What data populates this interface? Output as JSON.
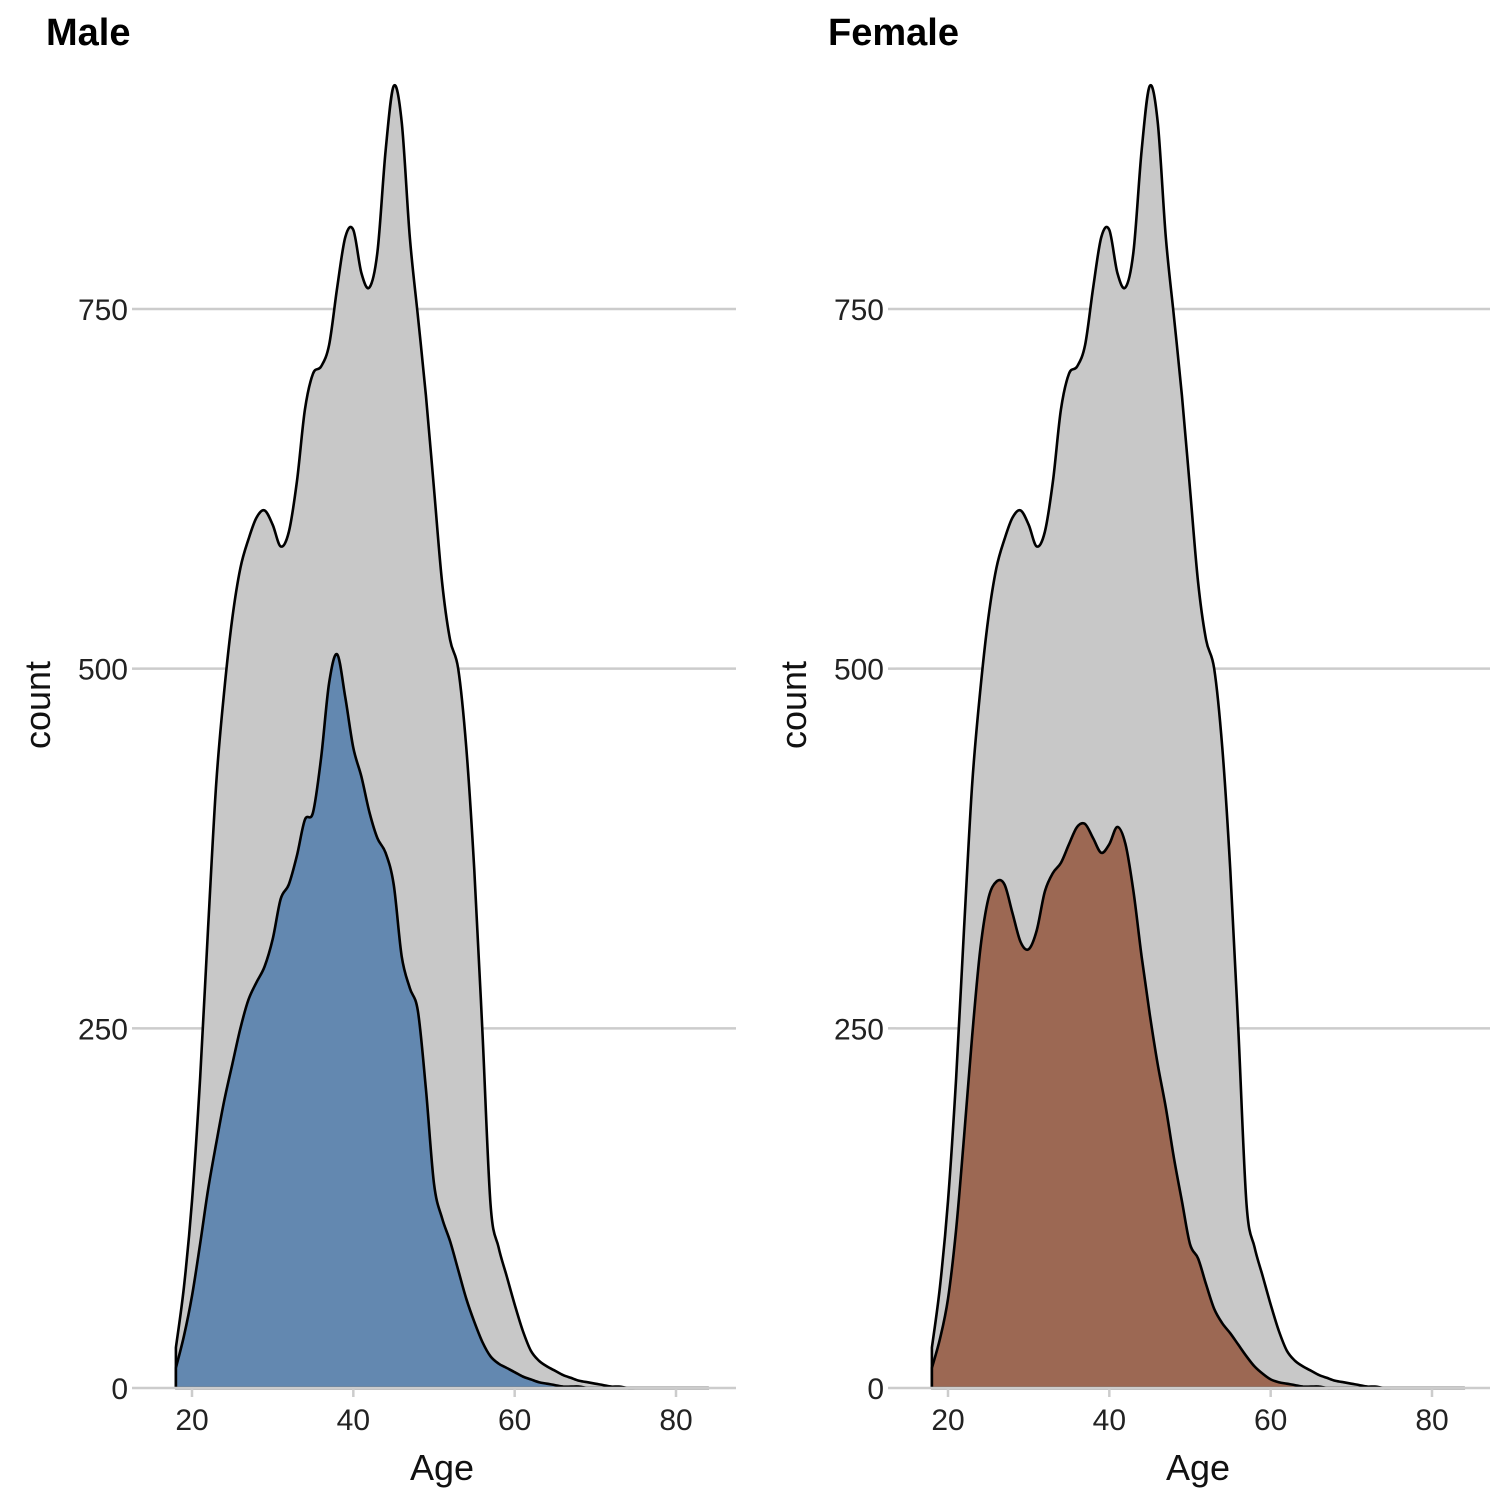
{
  "chart_data": [
    {
      "type": "area",
      "title": "Male",
      "xlabel": "Age",
      "ylabel": "count",
      "xlim": [
        16,
        87
      ],
      "ylim": [
        0,
        905
      ],
      "x_ticks": [
        20,
        40,
        60,
        80
      ],
      "y_ticks": [
        0,
        250,
        500,
        750
      ],
      "grid": "horizontal",
      "series": [
        {
          "role": "all",
          "color": "#c8c8c8",
          "x": [
            18,
            19,
            20,
            21,
            22,
            23,
            24,
            25,
            26,
            27,
            28,
            29,
            30,
            31,
            32,
            33,
            34,
            35,
            36,
            37,
            38,
            39,
            40,
            41,
            42,
            43,
            44,
            45,
            46,
            47,
            48,
            49,
            50,
            51,
            52,
            53,
            54,
            55,
            56,
            57,
            58,
            59,
            60,
            61,
            62,
            63,
            64,
            65,
            66,
            67,
            68,
            69,
            70,
            71,
            72,
            73,
            74,
            75,
            76,
            77,
            78,
            79,
            80,
            81,
            82,
            83,
            84
          ],
          "y": [
            28,
            70,
            130,
            215,
            320,
            420,
            485,
            535,
            570,
            590,
            605,
            610,
            600,
            585,
            595,
            630,
            680,
            705,
            710,
            725,
            765,
            800,
            805,
            775,
            765,
            790,
            860,
            905,
            880,
            800,
            745,
            690,
            625,
            560,
            520,
            500,
            445,
            360,
            248,
            128,
            98,
            78,
            58,
            40,
            26,
            19,
            15,
            12,
            9,
            7,
            5,
            4,
            3,
            2,
            1,
            1,
            0,
            0,
            0,
            0,
            0,
            0,
            0,
            0,
            0,
            0,
            0
          ]
        },
        {
          "role": "subgroup",
          "color": "#6388b0",
          "x": [
            18,
            19,
            20,
            21,
            22,
            23,
            24,
            25,
            26,
            27,
            28,
            29,
            30,
            31,
            32,
            33,
            34,
            35,
            36,
            37,
            38,
            39,
            40,
            41,
            42,
            43,
            44,
            45,
            46,
            47,
            48,
            49,
            50,
            51,
            52,
            53,
            54,
            55,
            56,
            57,
            58,
            59,
            60,
            61,
            62,
            63,
            64,
            65,
            66,
            67,
            68,
            69,
            70,
            71,
            72,
            73,
            74,
            75,
            76,
            77,
            78,
            79,
            80,
            81,
            82,
            83,
            84
          ],
          "y": [
            14,
            36,
            64,
            100,
            138,
            170,
            200,
            225,
            250,
            270,
            282,
            293,
            312,
            340,
            350,
            370,
            395,
            400,
            438,
            490,
            510,
            480,
            445,
            425,
            400,
            382,
            372,
            350,
            300,
            278,
            262,
            208,
            142,
            118,
            102,
            82,
            62,
            46,
            32,
            22,
            17,
            14,
            11,
            8,
            6,
            4,
            3,
            2,
            1,
            1,
            1,
            0,
            0,
            0,
            0,
            0,
            0,
            0,
            0,
            0,
            0,
            0,
            0,
            0,
            0,
            0,
            0
          ]
        }
      ]
    },
    {
      "type": "area",
      "title": "Female",
      "xlabel": "Age",
      "ylabel": "count",
      "xlim": [
        16,
        87
      ],
      "ylim": [
        0,
        905
      ],
      "x_ticks": [
        20,
        40,
        60,
        80
      ],
      "y_ticks": [
        0,
        250,
        500,
        750
      ],
      "grid": "horizontal",
      "series": [
        {
          "role": "all",
          "color": "#c8c8c8",
          "x": [
            18,
            19,
            20,
            21,
            22,
            23,
            24,
            25,
            26,
            27,
            28,
            29,
            30,
            31,
            32,
            33,
            34,
            35,
            36,
            37,
            38,
            39,
            40,
            41,
            42,
            43,
            44,
            45,
            46,
            47,
            48,
            49,
            50,
            51,
            52,
            53,
            54,
            55,
            56,
            57,
            58,
            59,
            60,
            61,
            62,
            63,
            64,
            65,
            66,
            67,
            68,
            69,
            70,
            71,
            72,
            73,
            74,
            75,
            76,
            77,
            78,
            79,
            80,
            81,
            82,
            83,
            84
          ],
          "y": [
            28,
            70,
            130,
            215,
            320,
            420,
            485,
            535,
            570,
            590,
            605,
            610,
            600,
            585,
            595,
            630,
            680,
            705,
            710,
            725,
            765,
            800,
            805,
            775,
            765,
            790,
            860,
            905,
            880,
            800,
            745,
            690,
            625,
            560,
            520,
            500,
            445,
            360,
            248,
            128,
            98,
            78,
            58,
            40,
            26,
            19,
            15,
            12,
            9,
            7,
            5,
            4,
            3,
            2,
            1,
            1,
            0,
            0,
            0,
            0,
            0,
            0,
            0,
            0,
            0,
            0,
            0
          ]
        },
        {
          "role": "subgroup",
          "color": "#9c6853",
          "x": [
            18,
            19,
            20,
            21,
            22,
            23,
            24,
            25,
            26,
            27,
            28,
            29,
            30,
            31,
            32,
            33,
            34,
            35,
            36,
            37,
            38,
            39,
            40,
            41,
            42,
            43,
            44,
            45,
            46,
            47,
            48,
            49,
            50,
            51,
            52,
            53,
            54,
            55,
            56,
            57,
            58,
            59,
            60,
            61,
            62,
            63,
            64,
            65,
            66,
            67,
            68,
            69,
            70,
            71,
            72,
            73,
            74,
            75,
            76,
            77,
            78,
            79,
            80,
            81,
            82,
            83,
            84
          ],
          "y": [
            14,
            34,
            62,
            110,
            175,
            245,
            305,
            340,
            352,
            350,
            330,
            310,
            305,
            318,
            345,
            358,
            365,
            378,
            390,
            392,
            382,
            372,
            378,
            390,
            378,
            345,
            300,
            260,
            225,
            195,
            160,
            130,
            100,
            90,
            72,
            55,
            45,
            38,
            30,
            22,
            15,
            10,
            6,
            4,
            3,
            2,
            1,
            1,
            1,
            0,
            0,
            0,
            0,
            0,
            0,
            0,
            0,
            0,
            0,
            0,
            0,
            0,
            0,
            0,
            0,
            0,
            0
          ]
        }
      ]
    }
  ]
}
